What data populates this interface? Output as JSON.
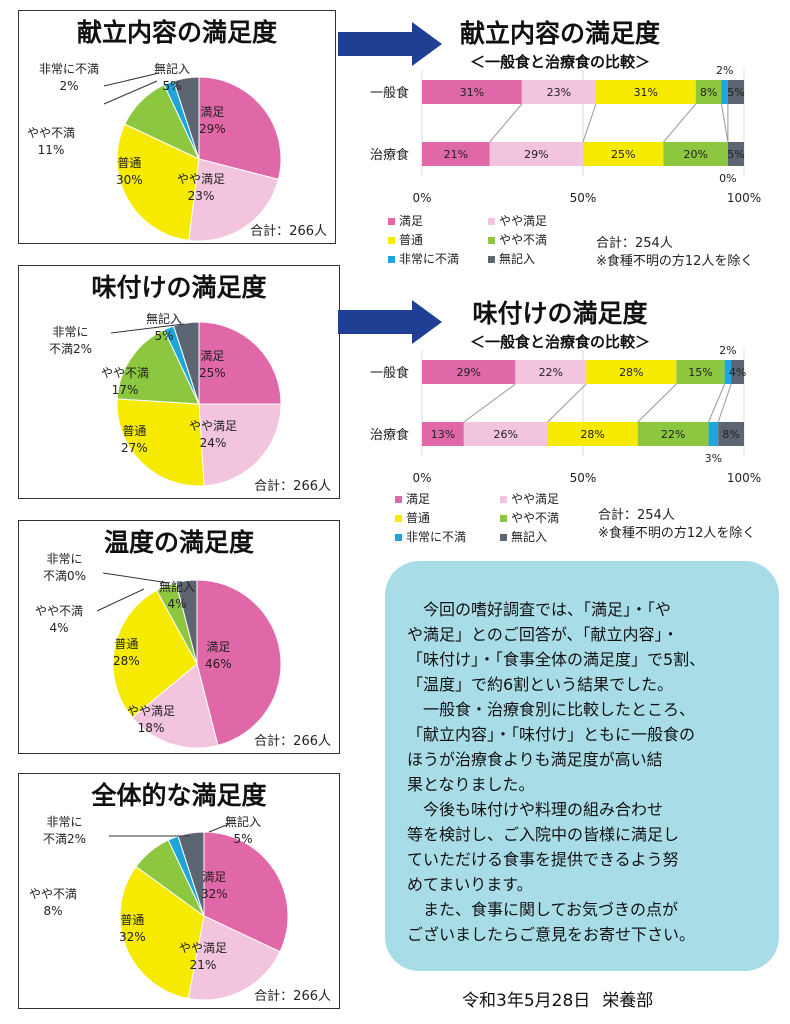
{
  "colors": {
    "manzoku": "#e067a8",
    "yaya_manzoku": "#f2c4dd",
    "futsu": "#f5ea00",
    "yaya_fuman": "#8dc63f",
    "hijou_fuman": "#1ea6db",
    "mukinyu": "#5c6572"
  },
  "chart_data": [
    {
      "type": "pie",
      "title": "献立内容の満足度",
      "total": "合計：266人",
      "slices": [
        {
          "name": "満足",
          "value": 29,
          "label": "29%"
        },
        {
          "name": "やや満足",
          "value": 23,
          "label": "23%"
        },
        {
          "name": "普通",
          "value": 30,
          "label": "30%"
        },
        {
          "name": "やや不満",
          "value": 11,
          "label": "11%"
        },
        {
          "name": "非常に不満",
          "value": 2,
          "label": "2%"
        },
        {
          "name": "無記入",
          "value": 5,
          "label": "5%"
        }
      ]
    },
    {
      "type": "bar",
      "orientation": "horizontal-stacked-100",
      "title": "献立内容の満足度",
      "subtitle": "＜一般食と治療食の比較＞",
      "categories": [
        "一般食",
        "治療食"
      ],
      "series": [
        {
          "name": "満足",
          "values": [
            31,
            21
          ]
        },
        {
          "name": "やや満足",
          "values": [
            23,
            29
          ]
        },
        {
          "name": "普通",
          "values": [
            31,
            25
          ]
        },
        {
          "name": "やや不満",
          "values": [
            8,
            20
          ]
        },
        {
          "name": "非常に不満",
          "values": [
            2,
            0
          ]
        },
        {
          "name": "無記入",
          "values": [
            5,
            5
          ]
        }
      ],
      "xticks": [
        "0%",
        "50%",
        "100%"
      ],
      "total": "合計：254人",
      "note": "※食種不明の方12人を除く"
    },
    {
      "type": "pie",
      "title": "味付けの満足度",
      "total": "合計：266人",
      "slices": [
        {
          "name": "満足",
          "value": 25,
          "label": "25%"
        },
        {
          "name": "やや満足",
          "value": 24,
          "label": "24%"
        },
        {
          "name": "普通",
          "value": 27,
          "label": "27%"
        },
        {
          "name": "やや不満",
          "value": 17,
          "label": "17%"
        },
        {
          "name": "非常に不満",
          "value": 2,
          "label": "2%"
        },
        {
          "name": "無記入",
          "value": 5,
          "label": "5%"
        }
      ]
    },
    {
      "type": "bar",
      "orientation": "horizontal-stacked-100",
      "title": "味付けの満足度",
      "subtitle": "＜一般食と治療食の比較＞",
      "categories": [
        "一般食",
        "治療食"
      ],
      "series": [
        {
          "name": "満足",
          "values": [
            29,
            13
          ]
        },
        {
          "name": "やや満足",
          "values": [
            22,
            26
          ]
        },
        {
          "name": "普通",
          "values": [
            28,
            28
          ]
        },
        {
          "name": "やや不満",
          "values": [
            15,
            22
          ]
        },
        {
          "name": "非常に不満",
          "values": [
            2,
            3
          ]
        },
        {
          "name": "無記入",
          "values": [
            4,
            8
          ]
        }
      ],
      "xticks": [
        "0%",
        "50%",
        "100%"
      ],
      "total": "合計：254人",
      "note": "※食種不明の方12人を除く"
    },
    {
      "type": "pie",
      "title": "温度の満足度",
      "total": "合計：266人",
      "slices": [
        {
          "name": "満足",
          "value": 46,
          "label": "46%"
        },
        {
          "name": "やや満足",
          "value": 18,
          "label": "18%"
        },
        {
          "name": "普通",
          "value": 28,
          "label": "28%"
        },
        {
          "name": "やや不満",
          "value": 4,
          "label": "4%"
        },
        {
          "name": "非常に不満",
          "value": 0,
          "label": "0%"
        },
        {
          "name": "無記入",
          "value": 4,
          "label": "4%"
        }
      ]
    },
    {
      "type": "pie",
      "title": "全体的な満足度",
      "total": "合計：266人",
      "slices": [
        {
          "name": "満足",
          "value": 32,
          "label": "32%"
        },
        {
          "name": "やや満足",
          "value": 21,
          "label": "21%"
        },
        {
          "name": "普通",
          "value": 32,
          "label": "32%"
        },
        {
          "name": "やや不満",
          "value": 8,
          "label": "8%"
        },
        {
          "name": "非常に不満",
          "value": 2,
          "label": "2%"
        },
        {
          "name": "無記入",
          "value": 5,
          "label": "5%"
        }
      ]
    }
  ],
  "pie_labels": {
    "p1": {
      "manzoku": "満足",
      "yaya_manzoku": "やや満足",
      "futsu": "普通",
      "yaya_fuman": "やや不満",
      "hijou_fuman": "非常に不満",
      "mukinyu": "無記入"
    },
    "p2": {
      "manzoku": "満足",
      "yaya_manzoku": "やや満足",
      "futsu": "普通",
      "yaya_fuman": "やや不満",
      "hijou_fuman_1": "非常に",
      "hijou_fuman_2": "不満2%",
      "mukinyu": "無記入"
    },
    "p3": {
      "manzoku": "満足",
      "yaya_manzoku": "やや満足",
      "futsu": "普通",
      "yaya_fuman": "やや不満",
      "hijou_fuman_1": "非常に",
      "hijou_fuman_2": "不満0%",
      "mukinyu": "無記入"
    },
    "p4": {
      "manzoku": "満足",
      "yaya_manzoku": "やや満足",
      "futsu": "普通",
      "yaya_fuman": "やや不満",
      "hijou_fuman_1": "非常に",
      "hijou_fuman_2": "不満2%",
      "mukinyu": "無記入"
    }
  },
  "legend": [
    "満足",
    "やや満足",
    "普通",
    "やや不満",
    "非常に不満",
    "無記入"
  ],
  "message": {
    "lines": [
      "　今回の嗜好調査では、「満足」・「や",
      "や満足」とのご回答が、「献立内容」・",
      "「味付け」・「食事全体の満足度」で5割、",
      "「温度」で約6割という結果でした。",
      "　一般食・治療食別に比較したところ、",
      "「献立内容」・「味付け」ともに一般食の",
      "ほうが治療食よりも満足度が高い結",
      "果となりました。",
      "　今後も味付けや料理の組み合わせ",
      "等を検討し、ご入院中の皆様に満足し",
      "ていただける食事を提供できるよう努",
      "めてまいります。",
      "　また、食事に関してお気づきの点が",
      "ございましたらご意見をお寄せ下さい。"
    ]
  },
  "footer": {
    "date": "令和3年5月28日",
    "dept": "栄養部"
  }
}
